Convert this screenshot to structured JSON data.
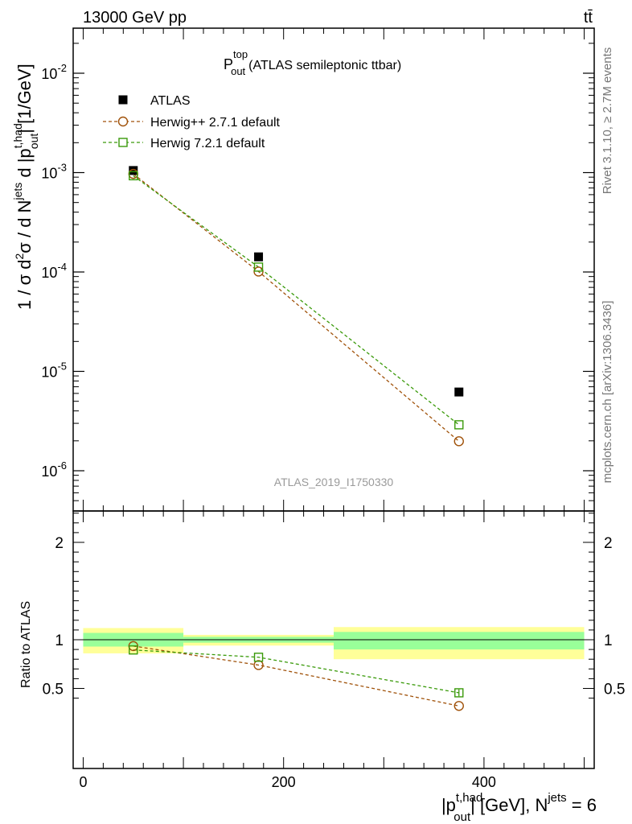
{
  "header": {
    "energy_label": "13000 GeV pp",
    "process_label": "tt̄"
  },
  "side_labels": {
    "rivet": "Rivet 3.1.10, ≥ 2.7M events",
    "mcplots": "mcplots.cern.ch [arXiv:1306.3436]"
  },
  "watermark": "ATLAS_2019_I1750330",
  "colors": {
    "atlas": "#000000",
    "herwigpp": "#a0520a",
    "herwig7": "#3a9a0a",
    "band_inner": "#99ff99",
    "band_outer": "#ffff99"
  },
  "chart_data": [
    {
      "type": "scatter",
      "title": "P_out^top (ATLAS semileptonic ttbar)",
      "ylabel": "1 / σ d²σ / d N^jets d |p_out^t,had| [1/GeV]",
      "yscale": "log",
      "ylim": [
        4e-07,
        0.03
      ],
      "xlim": [
        -10,
        510
      ],
      "y_tick_labels": [
        "10^-2",
        "10^-3",
        "10^-4",
        "10^-5",
        "10^-6"
      ],
      "legend_position": "top-left",
      "x": [
        50,
        175,
        375
      ],
      "series": [
        {
          "name": "ATLAS",
          "values": [
            0.00105,
            0.000142,
            6.2e-06
          ],
          "marker": "filled-square"
        },
        {
          "name": "Herwig++ 2.7.1 default",
          "values": [
            0.00097,
            0.000101,
            1.98e-06
          ],
          "marker": "open-circle",
          "line": "dashed"
        },
        {
          "name": "Herwig 7.2.1 default",
          "values": [
            0.00093,
            0.000112,
            2.9e-06
          ],
          "marker": "open-square",
          "line": "dashed"
        }
      ]
    },
    {
      "type": "scatter",
      "ylabel": "Ratio to ATLAS",
      "xlabel": "|p_out^t,had| [GeV], N^jets = 6",
      "ylim": [
        0.35,
        2.3
      ],
      "xlim": [
        -10,
        510
      ],
      "y_ticks": [
        0.5,
        1,
        2
      ],
      "x_ticks": [
        0,
        200,
        400
      ],
      "bins": [
        [
          0,
          100
        ],
        [
          100,
          250
        ],
        [
          250,
          500
        ]
      ],
      "band_inner": [
        [
          0.93,
          1.07
        ],
        [
          0.97,
          1.03
        ],
        [
          0.9,
          1.08
        ]
      ],
      "band_outer": [
        [
          0.86,
          1.12
        ],
        [
          0.94,
          1.05
        ],
        [
          0.8,
          1.13
        ]
      ],
      "x": [
        50,
        175,
        375
      ],
      "series": [
        {
          "name": "Herwig++ 2.7.1 default",
          "values": [
            0.935,
            0.74,
            0.32
          ]
        },
        {
          "name": "Herwig 7.2.1 default",
          "values": [
            0.895,
            0.82,
            0.455
          ],
          "errors": [
            0.0,
            0.0,
            0.035
          ]
        }
      ]
    }
  ]
}
